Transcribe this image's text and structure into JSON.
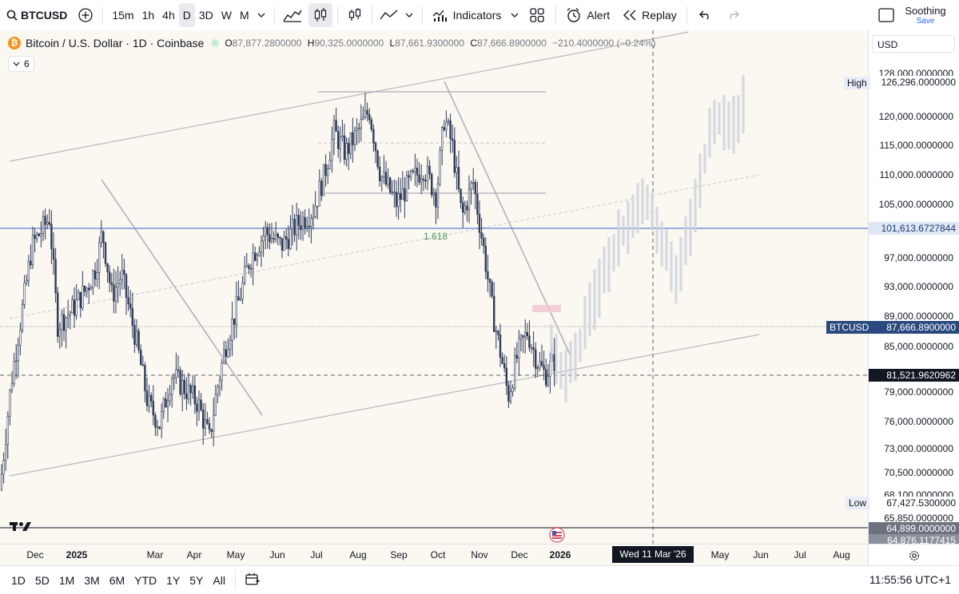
{
  "toolbar": {
    "symbol": "BTCUSD",
    "timeframes": [
      "15m",
      "1h",
      "4h",
      "D",
      "3D",
      "W",
      "M"
    ],
    "active_timeframe": "D",
    "indicators_label": "Indicators",
    "alert_label": "Alert",
    "replay_label": "Replay",
    "layout_name": "Soothing",
    "layout_save": "Save"
  },
  "legend": {
    "title": "Bitcoin / U.S. Dollar · 1D · Coinbase",
    "open_k": "O",
    "open_v": "87,877.2800000",
    "high_k": "H",
    "high_v": "90,325.0000000",
    "low_k": "L",
    "low_v": "87,661.9300000",
    "close_k": "C",
    "close_v": "87,666.8900000",
    "change": "−210.4000000 (−0.24%)",
    "indicator_count": "6"
  },
  "price_axis": {
    "currency": "USD",
    "labels": [
      "128,000.0000000",
      "120,000.0000000",
      "115,000.0000000",
      "110,000.0000000",
      "105,000.0000000",
      "97,000.0000000",
      "93,000.0000000",
      "89,000.0000000",
      "85,000.0000000",
      "79,000.0000000",
      "76,000.0000000",
      "73,000.0000000",
      "70,500.0000000",
      "68,100.0000000",
      "65,850.0000000"
    ],
    "high_label": "High",
    "high_value": "126,296.0000000",
    "hline_value": "101,613.6727844",
    "symbol_tag": "BTCUSD",
    "last_price": "87,666.8900000",
    "crosshair_value": "81,521.9620962",
    "low_label": "Low",
    "low_value": "67,427.5300000",
    "extra1": "64,899.0000000",
    "extra2": "64,876.1177415"
  },
  "fib_label": "1.618",
  "time_axis": {
    "labels": [
      "Dec",
      "2025",
      "Mar",
      "Apr",
      "May",
      "Jun",
      "Jul",
      "Aug",
      "Sep",
      "Oct",
      "Nov",
      "Dec",
      "2026",
      "May",
      "Jun",
      "Jul",
      "Aug"
    ],
    "crosshair_date": "Wed 11 Mar '26"
  },
  "bottom": {
    "ranges": [
      "1D",
      "5D",
      "1M",
      "3M",
      "6M",
      "YTD",
      "1Y",
      "5Y",
      "All"
    ],
    "clock": "11:55:56 UTC+1"
  },
  "colors": {
    "chart_bg": "#fbf7f1",
    "candle": "#2f3b58",
    "projection": "#cfd3dc",
    "hline": "#5b7fd8",
    "trend": "#b0b3bb",
    "fib": "#4a9a5a",
    "tag_blue": "#2a4a7f"
  },
  "chart_data": {
    "type": "candlestick",
    "symbol": "BTCUSD",
    "title": "Bitcoin / U.S. Dollar · 1D · Coinbase",
    "ylim": [
      64000,
      130000
    ],
    "last": {
      "open": 87877.28,
      "high": 90325.0,
      "low": 87661.93,
      "close": 87666.89
    },
    "high": 126296.0,
    "low": 67427.53,
    "hline": 101613.6727844,
    "crosshair": 81521.9620962,
    "series_path": [
      [
        0,
        70000
      ],
      [
        14,
        85000
      ],
      [
        40,
        104000
      ],
      [
        62,
        108000
      ],
      [
        72,
        93000
      ],
      [
        90,
        95000
      ],
      [
        108,
        98000
      ],
      [
        120,
        101000
      ],
      [
        128,
        106000
      ],
      [
        140,
        97000
      ],
      [
        152,
        100000
      ],
      [
        170,
        91000
      ],
      [
        185,
        82000
      ],
      [
        200,
        79000
      ],
      [
        215,
        86000
      ],
      [
        232,
        84000
      ],
      [
        248,
        82000
      ],
      [
        262,
        77000
      ],
      [
        270,
        83000
      ],
      [
        282,
        90000
      ],
      [
        298,
        96000
      ],
      [
        312,
        102000
      ],
      [
        332,
        106000
      ],
      [
        352,
        104000
      ],
      [
        372,
        107000
      ],
      [
        392,
        109000
      ],
      [
        406,
        114000
      ],
      [
        418,
        120000
      ],
      [
        432,
        117000
      ],
      [
        448,
        120000
      ],
      [
        462,
        123000
      ],
      [
        476,
        114000
      ],
      [
        496,
        110000
      ],
      [
        514,
        113000
      ],
      [
        530,
        115000
      ],
      [
        546,
        111000
      ],
      [
        556,
        122000
      ],
      [
        566,
        118000
      ],
      [
        578,
        108000
      ],
      [
        592,
        113000
      ],
      [
        606,
        103000
      ],
      [
        616,
        95000
      ],
      [
        628,
        88000
      ],
      [
        636,
        83000
      ],
      [
        648,
        89000
      ],
      [
        660,
        92000
      ],
      [
        672,
        88000
      ],
      [
        682,
        86000
      ],
      [
        694,
        88000
      ]
    ],
    "projection_path": [
      [
        690,
        89000
      ],
      [
        705,
        86000
      ],
      [
        720,
        88000
      ],
      [
        735,
        94000
      ],
      [
        750,
        98000
      ],
      [
        765,
        103000
      ],
      [
        780,
        106000
      ],
      [
        795,
        108000
      ],
      [
        810,
        110000
      ],
      [
        820,
        107000
      ],
      [
        835,
        104000
      ],
      [
        848,
        99000
      ],
      [
        862,
        106000
      ],
      [
        875,
        113000
      ],
      [
        888,
        119000
      ],
      [
        900,
        122000
      ],
      [
        915,
        120000
      ],
      [
        930,
        124000
      ]
    ]
  }
}
